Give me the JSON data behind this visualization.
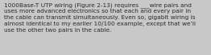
{
  "text": "1000Base-T UTP wiring (Figure 2-13) requires ___wire pairs and\nuses more advanced electronics so that each and every pair in\nthe cable can transmit simultaneously. Even so, gigabit wiring is\nalmost identical to my earlier 10/100 example, except that we’ll\nuse the other two pairs in the cable.",
  "background_color": "#c8c8c8",
  "text_color": "#2a2a2a",
  "font_size": 5.3,
  "linespacing": 1.38
}
